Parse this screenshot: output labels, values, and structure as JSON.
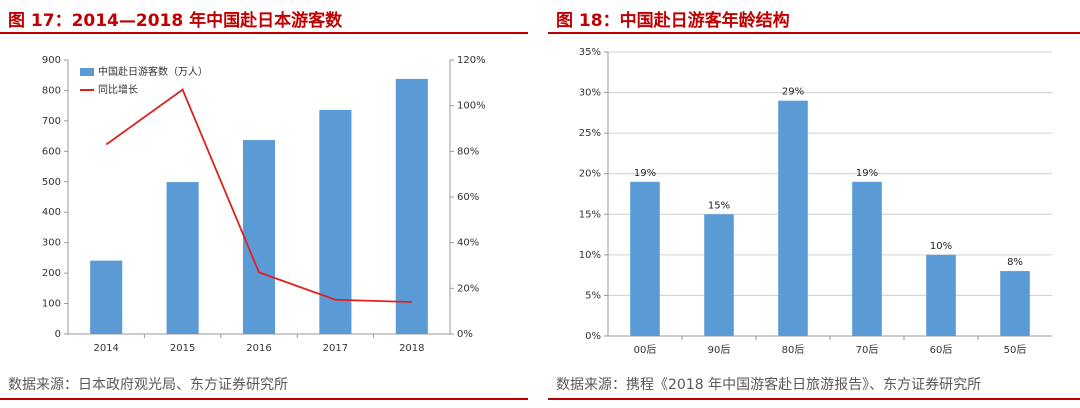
{
  "left": {
    "title": "图 17：2014—2018 年中国赴日本游客数",
    "source": "数据来源：日本政府观光局、东方证券研究所"
  },
  "right": {
    "title": "图 18：中国赴日游客年龄结构",
    "source": "数据来源：携程《2018 年中国游客赴日旅游报告》、东方证券研究所"
  },
  "colors": {
    "bar": "#5b9bd5",
    "line": "#e02020",
    "title": "#c00000",
    "source": "#595959"
  },
  "chart_data": [
    {
      "type": "bar",
      "combo_line": true,
      "categories": [
        "2014",
        "2015",
        "2016",
        "2017",
        "2018"
      ],
      "series": [
        {
          "name": "中国赴日游客数（万人）",
          "type": "bar",
          "axis": "left",
          "values": [
            241,
            499,
            637,
            736,
            838
          ]
        },
        {
          "name": "同比增长",
          "type": "line",
          "axis": "right",
          "values": [
            83,
            107,
            27,
            15,
            14
          ]
        }
      ],
      "ylim": [
        0,
        900
      ],
      "yticks": [
        "0",
        "100",
        "200",
        "300",
        "400",
        "500",
        "600",
        "700",
        "800",
        "900"
      ],
      "y2lim": [
        0,
        120
      ],
      "y2ticks": [
        "0%",
        "20%",
        "40%",
        "60%",
        "80%",
        "100%",
        "120%"
      ],
      "legend": "top-left",
      "grid": false
    },
    {
      "type": "bar",
      "categories": [
        "00后",
        "90后",
        "80后",
        "70后",
        "60后",
        "50后"
      ],
      "values": [
        19,
        15,
        29,
        19,
        10,
        8
      ],
      "data_labels": [
        "19%",
        "15%",
        "29%",
        "19%",
        "10%",
        "8%"
      ],
      "ylim": [
        0,
        35
      ],
      "yticks": [
        "0%",
        "5%",
        "10%",
        "15%",
        "20%",
        "25%",
        "30%",
        "35%"
      ],
      "grid": true
    }
  ]
}
